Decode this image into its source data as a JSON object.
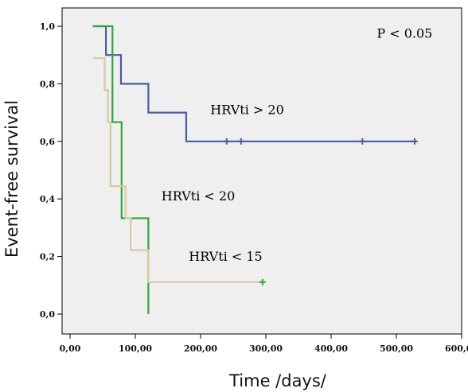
{
  "chart_data": {
    "type": "line",
    "subtype": "kaplan-meier",
    "title": "",
    "xlabel": "Time /days/",
    "ylabel": "Event-free survival",
    "xlim": [
      0,
      600
    ],
    "ylim": [
      0,
      1
    ],
    "x_ticks": [
      0,
      100,
      200,
      300,
      400,
      500,
      600
    ],
    "x_tick_labels": [
      "0,00",
      "100,00",
      "200,00",
      "300,00",
      "400,00",
      "500,00",
      "600,00"
    ],
    "y_ticks": [
      0,
      0.2,
      0.4,
      0.6,
      0.8,
      1.0
    ],
    "y_tick_labels": [
      "0,0",
      "0,2",
      "0,4",
      "0,6",
      "0,8",
      "1,0"
    ],
    "grid": false,
    "background": "#efefef",
    "annotations": [
      {
        "text": "P < 0.05",
        "x": 470,
        "y": 0.96
      },
      {
        "text": "HRVti > 20",
        "x": 215,
        "y": 0.695
      },
      {
        "text": "HRVti < 20",
        "x": 140,
        "y": 0.395
      },
      {
        "text": "HRVti < 15",
        "x": 182,
        "y": 0.185
      }
    ],
    "series": [
      {
        "color": "#4a5ba8",
        "steps": [
          [
            35,
            1.0
          ],
          [
            55,
            0.9
          ],
          [
            78,
            0.8
          ],
          [
            120,
            0.7
          ],
          [
            178,
            0.6
          ],
          [
            530,
            0.6
          ]
        ],
        "censored": [
          [
            240,
            0.6
          ],
          [
            262,
            0.6
          ],
          [
            448,
            0.6
          ],
          [
            528,
            0.6
          ]
        ]
      },
      {
        "color": "#2fa83a",
        "steps": [
          [
            35,
            1.0
          ],
          [
            63,
            1.0
          ],
          [
            65,
            0.667
          ],
          [
            77,
            0.667
          ],
          [
            79,
            0.333
          ],
          [
            118,
            0.333
          ],
          [
            120,
            0.0
          ]
        ],
        "censored": []
      },
      {
        "color": "#d8c8a0",
        "steps": [
          [
            35,
            0.889
          ],
          [
            53,
            0.778
          ],
          [
            58,
            0.667
          ],
          [
            62,
            0.444
          ],
          [
            85,
            0.333
          ],
          [
            93,
            0.222
          ],
          [
            118,
            0.222
          ],
          [
            120,
            0.111
          ],
          [
            295,
            0.111
          ]
        ],
        "censored": [
          [
            295,
            0.111
          ]
        ],
        "censor_color": "#2fa83a"
      }
    ]
  }
}
